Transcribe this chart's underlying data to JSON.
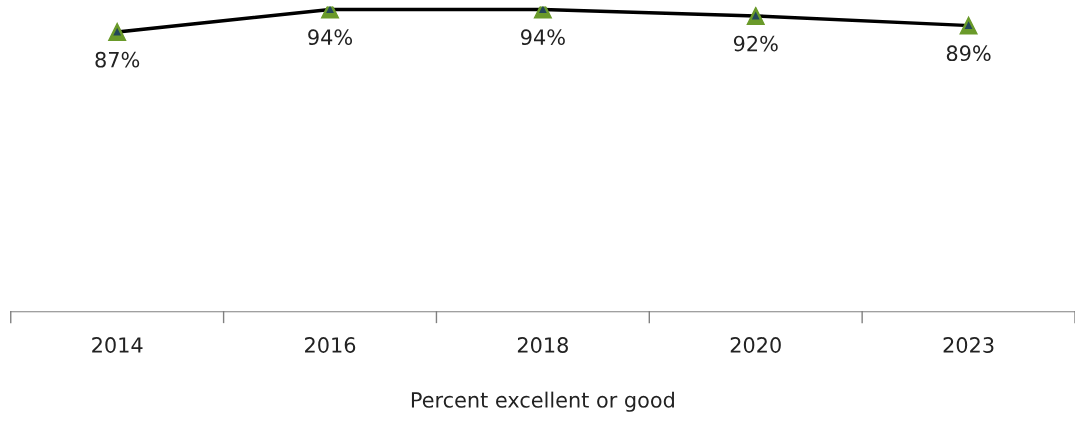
{
  "chart_data": {
    "type": "line",
    "xlabel": "Percent excellent or good",
    "categories": [
      "2014",
      "2016",
      "2018",
      "2020",
      "2023"
    ],
    "series": [
      {
        "color": "#6a9a2a",
        "values": [
          87,
          94,
          94,
          92,
          89
        ],
        "value_labels": [
          "87%",
          "94%",
          "94%",
          "92%",
          "89%"
        ]
      }
    ],
    "marker": "triangle",
    "line_style": "solid",
    "tick_labels": "x",
    "grid": false,
    "legend": false
  }
}
